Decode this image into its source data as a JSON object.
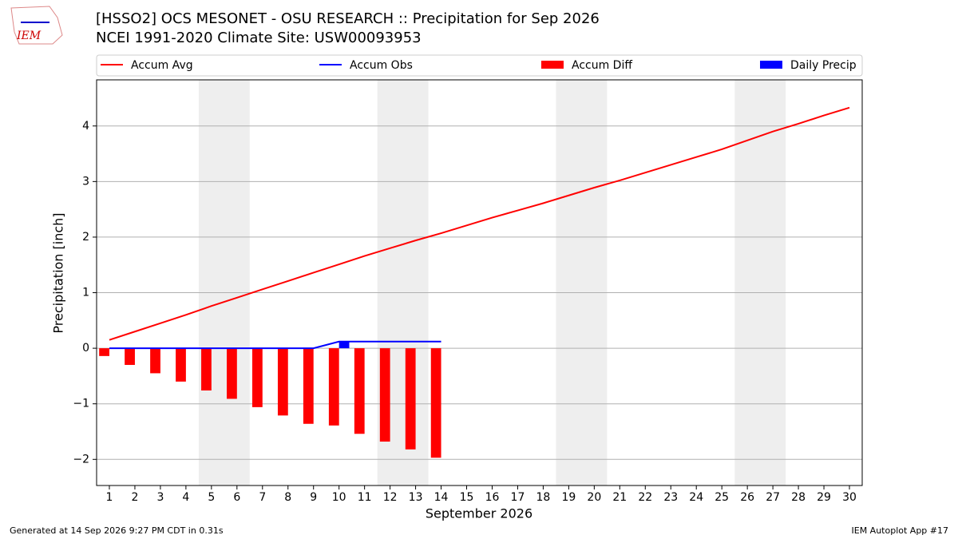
{
  "logo_text": "IEM",
  "footer_left": "Generated at 14 Sep 2026 9:27 PM CDT in 0.31s",
  "footer_right": "IEM Autoplot App #17",
  "chart_data": {
    "type": "line",
    "title": "[HSSO2] OCS MESONET - OSU RESEARCH :: Precipitation for Sep 2026",
    "subtitle": "NCEI 1991-2020 Climate Site: USW00093953",
    "xlabel": "September 2026",
    "ylabel": "Precipitation [inch]",
    "x": [
      1,
      2,
      3,
      4,
      5,
      6,
      7,
      8,
      9,
      10,
      11,
      12,
      13,
      14,
      15,
      16,
      17,
      18,
      19,
      20,
      21,
      22,
      23,
      24,
      25,
      26,
      27,
      28,
      29,
      30
    ],
    "series": [
      {
        "name": "Accum Avg",
        "color": "#ff0000",
        "kind": "line",
        "values": [
          0.15,
          0.3,
          0.45,
          0.6,
          0.76,
          0.91,
          1.06,
          1.21,
          1.36,
          1.51,
          1.66,
          1.8,
          1.94,
          2.07,
          2.21,
          2.35,
          2.48,
          2.61,
          2.75,
          2.89,
          3.02,
          3.16,
          3.3,
          3.44,
          3.58,
          3.74,
          3.9,
          4.04,
          4.19,
          4.33
        ]
      },
      {
        "name": "Accum Obs",
        "color": "#0000ff",
        "kind": "line",
        "values": [
          0,
          0,
          0,
          0,
          0,
          0,
          0,
          0,
          0,
          0.12,
          0.12,
          0.12,
          0.12,
          0.12,
          null,
          null,
          null,
          null,
          null,
          null,
          null,
          null,
          null,
          null,
          null,
          null,
          null,
          null,
          null,
          null
        ]
      },
      {
        "name": "Accum Diff",
        "color": "#ff0000",
        "kind": "bar",
        "offset": -0.4,
        "values": [
          -0.14,
          -0.3,
          -0.45,
          -0.6,
          -0.76,
          -0.91,
          -1.06,
          -1.21,
          -1.36,
          -1.39,
          -1.54,
          -1.68,
          -1.82,
          -1.97,
          null,
          null,
          null,
          null,
          null,
          null,
          null,
          null,
          null,
          null,
          null,
          null,
          null,
          null,
          null,
          null
        ]
      },
      {
        "name": "Daily Precip",
        "color": "#0000ff",
        "kind": "bar",
        "offset": 0,
        "values": [
          0,
          0,
          0,
          0,
          0,
          0,
          0,
          0,
          0,
          0.12,
          0,
          0,
          0,
          0,
          null,
          null,
          null,
          null,
          null,
          null,
          null,
          null,
          null,
          null,
          null,
          null,
          null,
          null,
          null,
          null
        ]
      }
    ],
    "xlim": [
      0.5,
      30.5
    ],
    "xticks": [
      1,
      2,
      3,
      4,
      5,
      6,
      7,
      8,
      9,
      10,
      11,
      12,
      13,
      14,
      15,
      16,
      17,
      18,
      19,
      20,
      21,
      22,
      23,
      24,
      25,
      26,
      27,
      28,
      29,
      30
    ],
    "ylim": [
      -2.47,
      4.83
    ],
    "yticks": [
      -2,
      -1,
      0,
      1,
      2,
      3,
      4
    ],
    "grid": true
  }
}
